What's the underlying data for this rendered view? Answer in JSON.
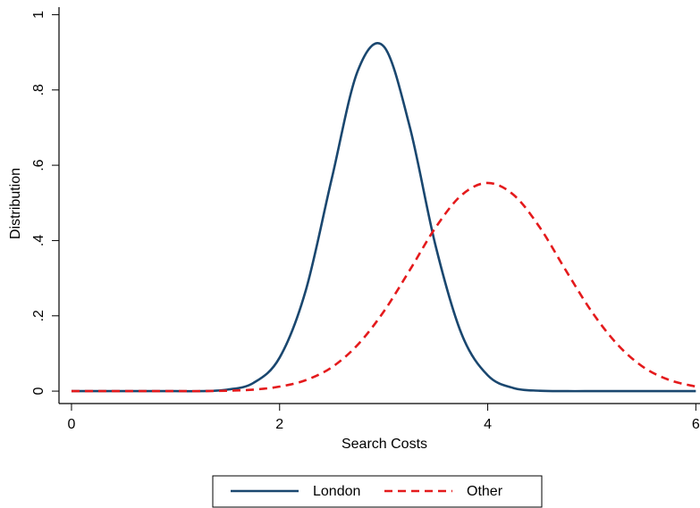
{
  "chart_data": {
    "type": "line",
    "xlabel": "Search Costs",
    "ylabel": "Distribution",
    "x": [
      0,
      0.25,
      0.5,
      0.75,
      1,
      1.25,
      1.5,
      1.75,
      2,
      2.25,
      2.5,
      2.75,
      3,
      3.25,
      3.5,
      3.75,
      4,
      4.25,
      4.5,
      4.75,
      5,
      5.25,
      5.5,
      5.75,
      6
    ],
    "series": [
      {
        "name": "London",
        "color": "#1a476f",
        "dash": "solid",
        "values": [
          0,
          0,
          0,
          0,
          0,
          0,
          0.004,
          0.022,
          0.089,
          0.266,
          0.563,
          0.85,
          0.916,
          0.703,
          0.385,
          0.151,
          0.042,
          0.008,
          0.001,
          0,
          0,
          0,
          0,
          0,
          0
        ]
      },
      {
        "name": "Other",
        "color": "#e41a1c",
        "dash": "dashed",
        "values": [
          0,
          0,
          0,
          0,
          0,
          0,
          0.001,
          0.004,
          0.012,
          0.029,
          0.063,
          0.123,
          0.211,
          0.321,
          0.435,
          0.521,
          0.553,
          0.521,
          0.435,
          0.321,
          0.211,
          0.123,
          0.063,
          0.029,
          0.012
        ]
      }
    ],
    "xlim": [
      -0.12,
      6.04
    ],
    "xticks": [
      0,
      2,
      4,
      6
    ],
    "ylim": [
      -0.033,
      1.02
    ],
    "yticks": [
      0,
      {
        "value": 0.2,
        "label": ".2"
      },
      {
        "value": 0.4,
        "label": ".4"
      },
      {
        "value": 0.6,
        "label": ".6"
      },
      {
        "value": 0.8,
        "label": ".8"
      },
      1
    ],
    "grid": false,
    "legend": "bottom"
  }
}
